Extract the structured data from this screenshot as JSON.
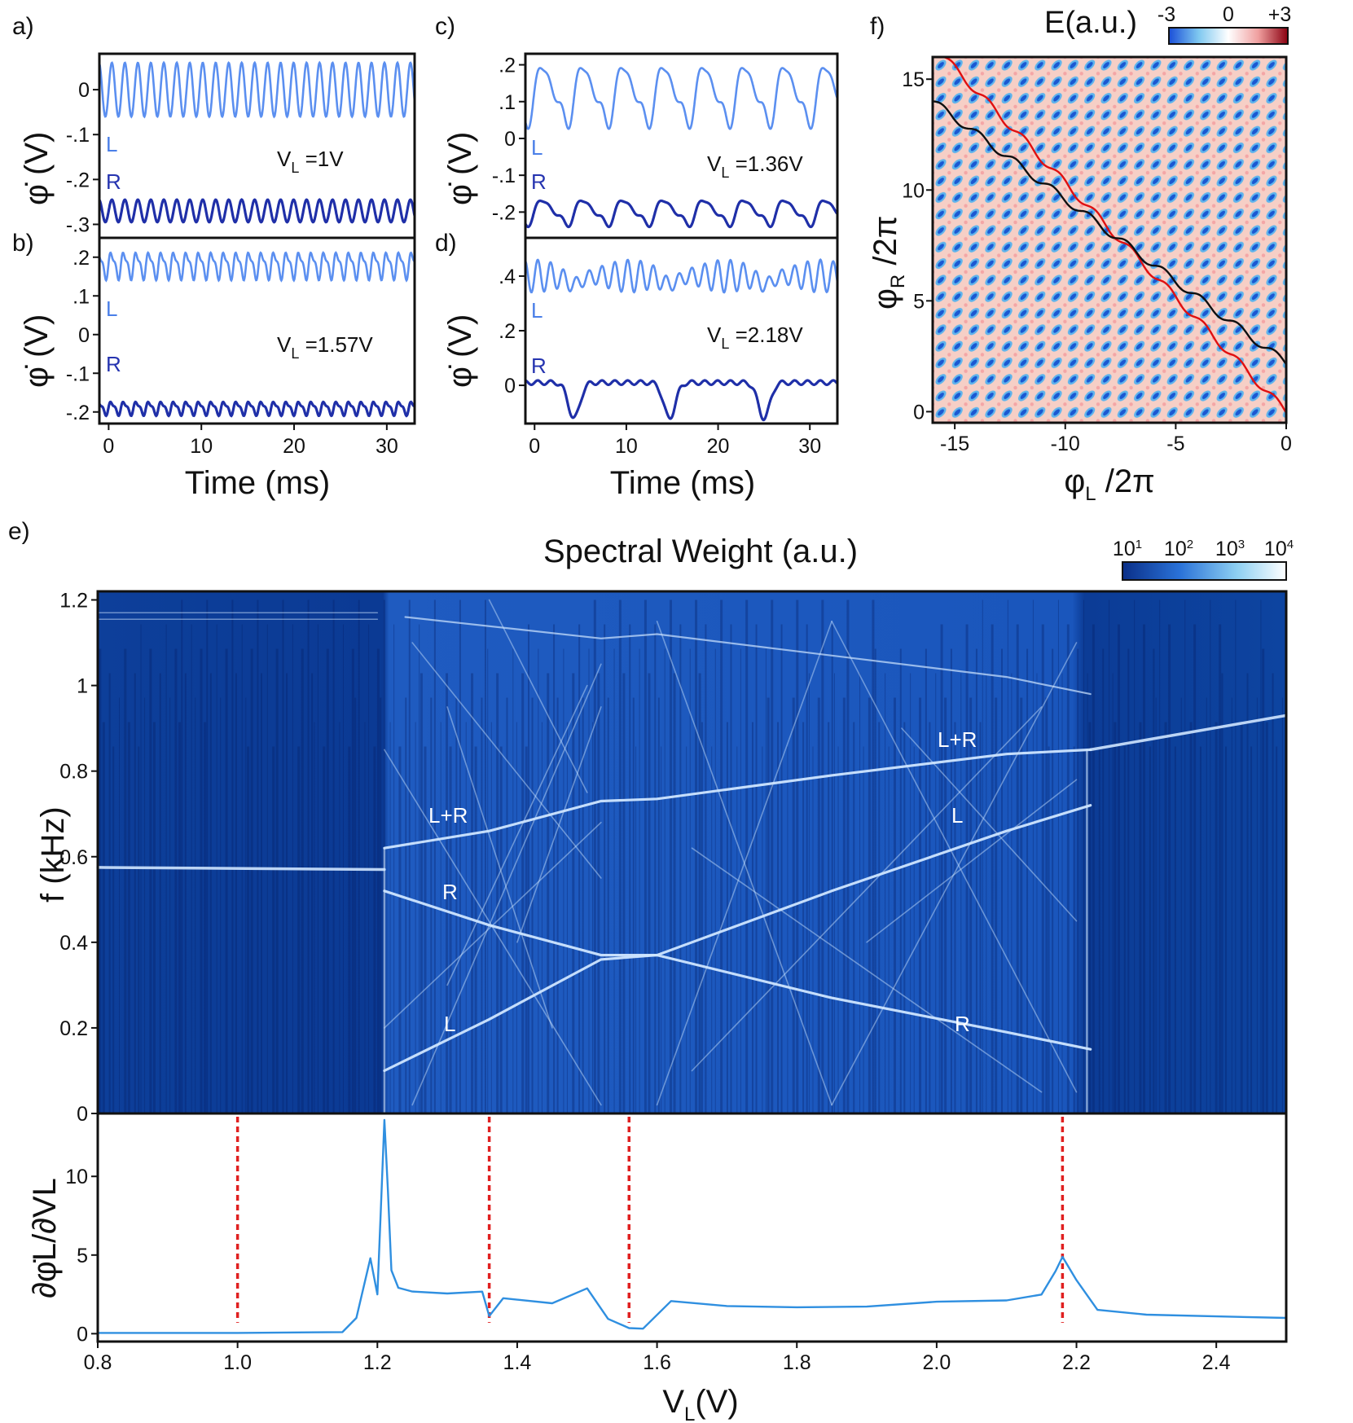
{
  "colors": {
    "L_trace": "#5b8ff0",
    "R_trace": "#1f2fa8",
    "annot_L": "#4a7fe8",
    "annot_R": "#2634b0",
    "spectral_bg": "#0a3a94",
    "spectral_line": "#cfe6ff",
    "deriv_line": "#2f8fe0",
    "dashed_marker": "#e02020",
    "energy_line_red": "#e01010",
    "energy_line_black": "#101010"
  },
  "panels": {
    "a": {
      "label": "a)",
      "ylabel": "φ̇ (V)",
      "annot_L": "L",
      "annot_R": "R",
      "vl_text": "V",
      "vl_sub": "L",
      "vl_val": " =1V",
      "yticks": [
        "0",
        "-.1",
        "-.2",
        "-.3"
      ]
    },
    "b": {
      "label": "b)",
      "ylabel": "φ̇ (V)",
      "annot_L": "L",
      "annot_R": "R",
      "vl_text": "V",
      "vl_sub": "L",
      "vl_val": " =1.57V",
      "yticks": [
        ".2",
        ".1",
        "0",
        "-.1",
        "-.2"
      ],
      "xticks": [
        "0",
        "10",
        "20",
        "30"
      ],
      "xlabel": "Time (ms)"
    },
    "c": {
      "label": "c)",
      "ylabel": "φ̇ (V)",
      "annot_L": "L",
      "annot_R": "R",
      "vl_text": "V",
      "vl_sub": "L",
      "vl_val": " =1.36V",
      "yticks": [
        ".2",
        ".1",
        "0",
        "-.1",
        "-.2"
      ]
    },
    "d": {
      "label": "d)",
      "ylabel": "φ̇ (V)",
      "annot_L": "L",
      "annot_R": "R",
      "vl_text": "V",
      "vl_sub": "L",
      "vl_val": " =2.18V",
      "yticks": [
        ".4",
        ".2",
        "0"
      ],
      "xticks": [
        "0",
        "10",
        "20",
        "30"
      ],
      "xlabel": "Time (ms)"
    },
    "f": {
      "label": "f)",
      "ylabel_main": "φ",
      "ylabel_sub": "R",
      "ylabel_tail": " /2π",
      "xlabel_main": "φ",
      "xlabel_sub": "L",
      "xlabel_tail": " /2π",
      "xticks": [
        "-15",
        "-10",
        "-5",
        "0"
      ],
      "yticks": [
        "15",
        "10",
        "5",
        "0"
      ],
      "cbar_title": "E(a.u.)",
      "cbar_ticks": [
        "-3",
        "0",
        "+3"
      ]
    },
    "e": {
      "label": "e)",
      "title": "Spectral Weight (a.u.)",
      "ylabel": "f (kHz)",
      "yticks": [
        "1.2",
        "1",
        "0.8",
        "0.6",
        "0.4",
        "0.2",
        "0"
      ],
      "cbar_ticks_base": [
        "10",
        "10",
        "10",
        "10"
      ],
      "cbar_ticks_exp": [
        "1",
        "2",
        "3",
        "4"
      ],
      "annotations": [
        "L+R",
        "R",
        "L",
        "L+R",
        "L",
        "R"
      ]
    },
    "g": {
      "ylabel": "∂φ̇L/∂VL",
      "yticks": [
        "10",
        "5",
        "0"
      ],
      "xticks": [
        "0.8",
        "1.0",
        "1.2",
        "1.4",
        "1.6",
        "1.8",
        "2.0",
        "2.2",
        "2.4"
      ],
      "xlabel_main": "V",
      "xlabel_sub": "L",
      "xlabel_tail": "(V)"
    }
  },
  "chart_data": [
    {
      "type": "line",
      "panel": "a",
      "xlabel": "",
      "ylabel": "φ̇ (V)",
      "xlim": [
        -1,
        33
      ],
      "ylim": [
        -0.33,
        0.08
      ],
      "series": [
        {
          "name": "L",
          "period": 1.4,
          "mean": 0.0,
          "amp": 0.06
        },
        {
          "name": "R",
          "period": 1.4,
          "mean": -0.27,
          "amp": 0.025
        }
      ],
      "annotation": "VL =1V"
    },
    {
      "type": "line",
      "panel": "b",
      "xlabel": "Time (ms)",
      "ylabel": "φ̇ (V)",
      "xlim": [
        -1,
        33
      ],
      "ylim": [
        -0.23,
        0.25
      ],
      "series": [
        {
          "name": "L",
          "period": 1.35,
          "mean": 0.18,
          "amp": 0.03
        },
        {
          "name": "R",
          "period": 1.35,
          "mean": -0.19,
          "amp": 0.015
        }
      ],
      "annotation": "VL =1.57V"
    },
    {
      "type": "line",
      "panel": "c",
      "xlabel": "",
      "ylabel": "φ̇ (V)",
      "xlim": [
        -1,
        33
      ],
      "ylim": [
        -0.27,
        0.23
      ],
      "series": [
        {
          "name": "L",
          "period": 4.4,
          "mean": 0.12,
          "amp": 0.07
        },
        {
          "name": "R",
          "period": 4.4,
          "mean": -0.2,
          "amp": 0.03
        }
      ],
      "annotation": "VL =1.36V"
    },
    {
      "type": "line",
      "panel": "d",
      "xlabel": "Time (ms)",
      "ylabel": "φ̇ (V)",
      "xlim": [
        -1,
        33
      ],
      "ylim": [
        -0.14,
        0.54
      ],
      "series": [
        {
          "name": "L",
          "period": 1.4,
          "mean": 0.4,
          "amp": 0.06
        },
        {
          "name": "R",
          "mean": 0.01,
          "dip_centers": [
            4.3,
            14.7,
            25.0
          ],
          "dip_depth": 0.13
        }
      ],
      "annotation": "VL =2.18V"
    },
    {
      "type": "heatmap",
      "panel": "f",
      "xlabel": "φL /2π",
      "ylabel": "φR /2π",
      "xlim": [
        -16,
        0
      ],
      "ylim": [
        -0.5,
        16
      ],
      "colorbar": {
        "title": "E(a.u.)",
        "range": [
          -3,
          3
        ]
      },
      "lines": [
        {
          "color": "red",
          "from": [
            -15.5,
            16
          ],
          "to": [
            0,
            0
          ]
        },
        {
          "color": "black",
          "from": [
            -16,
            14
          ],
          "to": [
            0,
            2.2
          ]
        }
      ]
    },
    {
      "type": "heatmap",
      "panel": "e",
      "title": "Spectral Weight (a.u.)",
      "xlabel": "VL(V)",
      "ylabel": "f (kHz)",
      "xlim": [
        0.8,
        2.5
      ],
      "ylim": [
        0,
        1.22
      ],
      "colorbar": {
        "scale": "log",
        "range": [
          10,
          10000
        ]
      },
      "regions": [
        {
          "from": 0.8,
          "to": 1.21,
          "tone": 0.58
        },
        {
          "from": 1.21,
          "to": 2.22,
          "lines": "L, R, L+R"
        },
        {
          "from": 2.22,
          "to": 2.5,
          "tone": 0.85
        }
      ]
    },
    {
      "type": "line",
      "panel": "g",
      "xlabel": "VL(V)",
      "ylabel": "∂φ̇L/∂VL",
      "xlim": [
        0.8,
        2.5
      ],
      "ylim": [
        -0.5,
        14
      ],
      "x": [
        0.8,
        1.0,
        1.15,
        1.17,
        1.19,
        1.2,
        1.205,
        1.21,
        1.215,
        1.22,
        1.23,
        1.25,
        1.3,
        1.35,
        1.36,
        1.38,
        1.45,
        1.5,
        1.53,
        1.56,
        1.58,
        1.62,
        1.7,
        1.8,
        1.9,
        2.0,
        2.1,
        2.15,
        2.17,
        2.18,
        2.2,
        2.23,
        2.3,
        2.4,
        2.5
      ],
      "y": [
        0.05,
        0.05,
        0.1,
        1.0,
        4.8,
        2.5,
        8.0,
        13.5,
        9.0,
        4.0,
        3.0,
        2.8,
        2.6,
        2.6,
        1.0,
        2.2,
        2.0,
        3.0,
        1.0,
        0.3,
        0.2,
        2.0,
        1.8,
        1.8,
        1.8,
        2.0,
        2.0,
        2.4,
        4.0,
        5.0,
        3.5,
        1.5,
        1.1,
        1.0,
        1.0
      ],
      "markers": [
        1.0,
        1.36,
        1.56,
        2.18
      ]
    }
  ]
}
